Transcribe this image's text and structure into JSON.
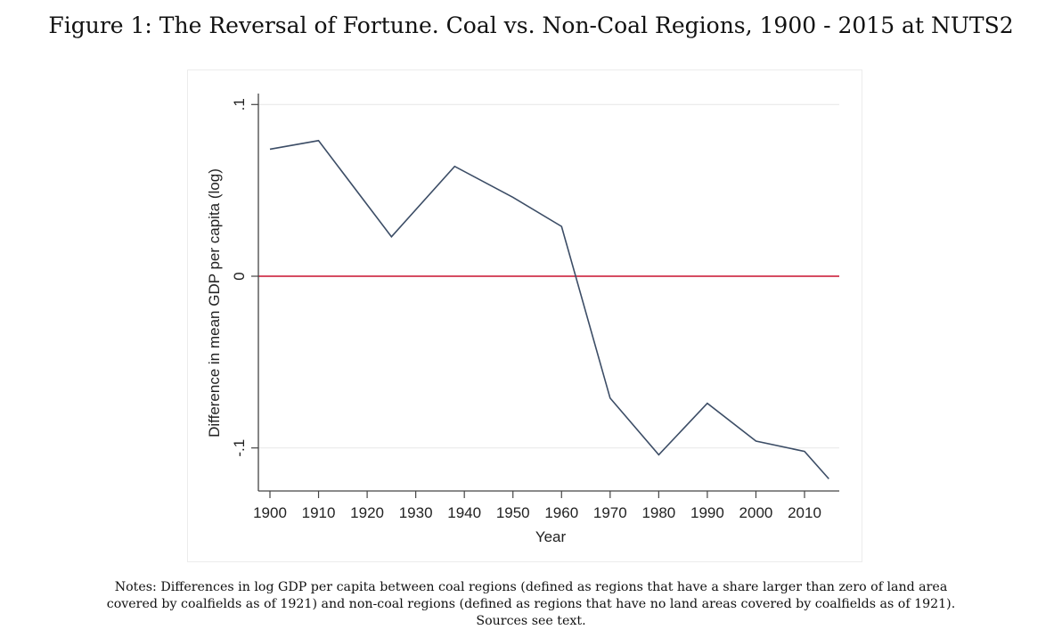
{
  "figure": {
    "title": "Figure 1: The Reversal of Fortune. Coal vs. Non-Coal Regions, 1900 - 2015 at NUTS2",
    "notes": [
      "Notes: Differences in log GDP per capita between coal regions (defined as regions that have a share larger than zero of land area",
      "covered by coalfields as of 1921) and non-coal regions (defined as regions that have no land areas covered by coalfields as of 1921).",
      "Sources see text."
    ]
  },
  "chart_data": {
    "type": "line",
    "title": "",
    "xlabel": "Year",
    "ylabel": "Difference in mean GDP per capita (log)",
    "xlim": [
      1897,
      2017
    ],
    "ylim": [
      -0.125,
      0.1
    ],
    "x_ticks": [
      1900,
      1910,
      1920,
      1930,
      1940,
      1950,
      1960,
      1970,
      1980,
      1990,
      2000,
      2010
    ],
    "x_tick_labels": [
      "1900",
      "1910",
      "1920",
      "1930",
      "1940",
      "1950",
      "1960",
      "1970",
      "1980",
      "1990",
      "2000",
      "2010"
    ],
    "y_ticks": [
      -0.1,
      0,
      0.1
    ],
    "y_tick_labels": [
      "-.1",
      "0",
      ".1"
    ],
    "grid": true,
    "reference_line": {
      "y": 0,
      "color": "#c8102e"
    },
    "series": [
      {
        "name": "Difference in mean GDP per capita (log)",
        "color": "#3c4d66",
        "x": [
          1900,
          1910,
          1925,
          1938,
          1950,
          1960,
          1970,
          1980,
          1990,
          2000,
          2010,
          2015
        ],
        "y": [
          0.074,
          0.079,
          0.023,
          0.064,
          0.046,
          0.029,
          -0.071,
          -0.104,
          -0.074,
          -0.096,
          -0.102,
          -0.118
        ]
      }
    ]
  }
}
